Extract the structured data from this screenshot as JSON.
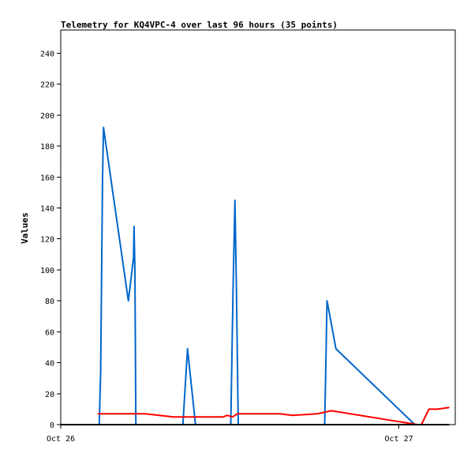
{
  "chart_data": {
    "type": "line",
    "title": "Telemetry for KQ4VPC-4 over last 96 hours (35 points)",
    "xlabel": "",
    "ylabel": "Values",
    "xlim": [
      0,
      42
    ],
    "ylim": [
      0,
      255
    ],
    "x_unit": "hours since Oct 26 00:00",
    "x_ticks": [
      {
        "x": 0,
        "label": "Oct 26"
      },
      {
        "x": 36,
        "label": "Oct 27"
      }
    ],
    "y_ticks": [
      0,
      20,
      40,
      60,
      80,
      100,
      120,
      140,
      160,
      180,
      200,
      220,
      240
    ],
    "grid": false,
    "legend": "none",
    "series": [
      {
        "color": "#0066cc",
        "points": [
          [
            4.1,
            0
          ],
          [
            4.25,
            35
          ],
          [
            4.35,
            98
          ],
          [
            4.45,
            160
          ],
          [
            4.55,
            192
          ],
          [
            7.2,
            80
          ],
          [
            7.75,
            108
          ],
          [
            7.8,
            128
          ],
          [
            7.9,
            100
          ],
          [
            8.0,
            0
          ],
          [
            13.0,
            0
          ],
          [
            13.5,
            49
          ],
          [
            14.35,
            0
          ],
          [
            18.1,
            0
          ],
          [
            18.35,
            90
          ],
          [
            18.55,
            145
          ],
          [
            18.7,
            90
          ],
          [
            18.9,
            0
          ],
          [
            28.1,
            0
          ],
          [
            28.2,
            30
          ],
          [
            28.35,
            80
          ],
          [
            28.6,
            72
          ],
          [
            29.3,
            49
          ],
          [
            37.7,
            0
          ]
        ]
      },
      {
        "color": "#ff0000",
        "points": [
          [
            4.0,
            7
          ],
          [
            5.0,
            7
          ],
          [
            9.0,
            7
          ],
          [
            12.0,
            5
          ],
          [
            17.3,
            5
          ],
          [
            17.7,
            6
          ],
          [
            18.3,
            5
          ],
          [
            18.8,
            7
          ],
          [
            23.3,
            7
          ],
          [
            24.7,
            6
          ],
          [
            27.3,
            7
          ],
          [
            28.8,
            9
          ],
          [
            38.0,
            0
          ],
          [
            38.4,
            0
          ],
          [
            39.2,
            10
          ],
          [
            40.1,
            10
          ],
          [
            41.3,
            11
          ]
        ]
      },
      {
        "color": "#000000",
        "points": [
          [
            0,
            0
          ],
          [
            41.3,
            0
          ]
        ]
      }
    ]
  }
}
